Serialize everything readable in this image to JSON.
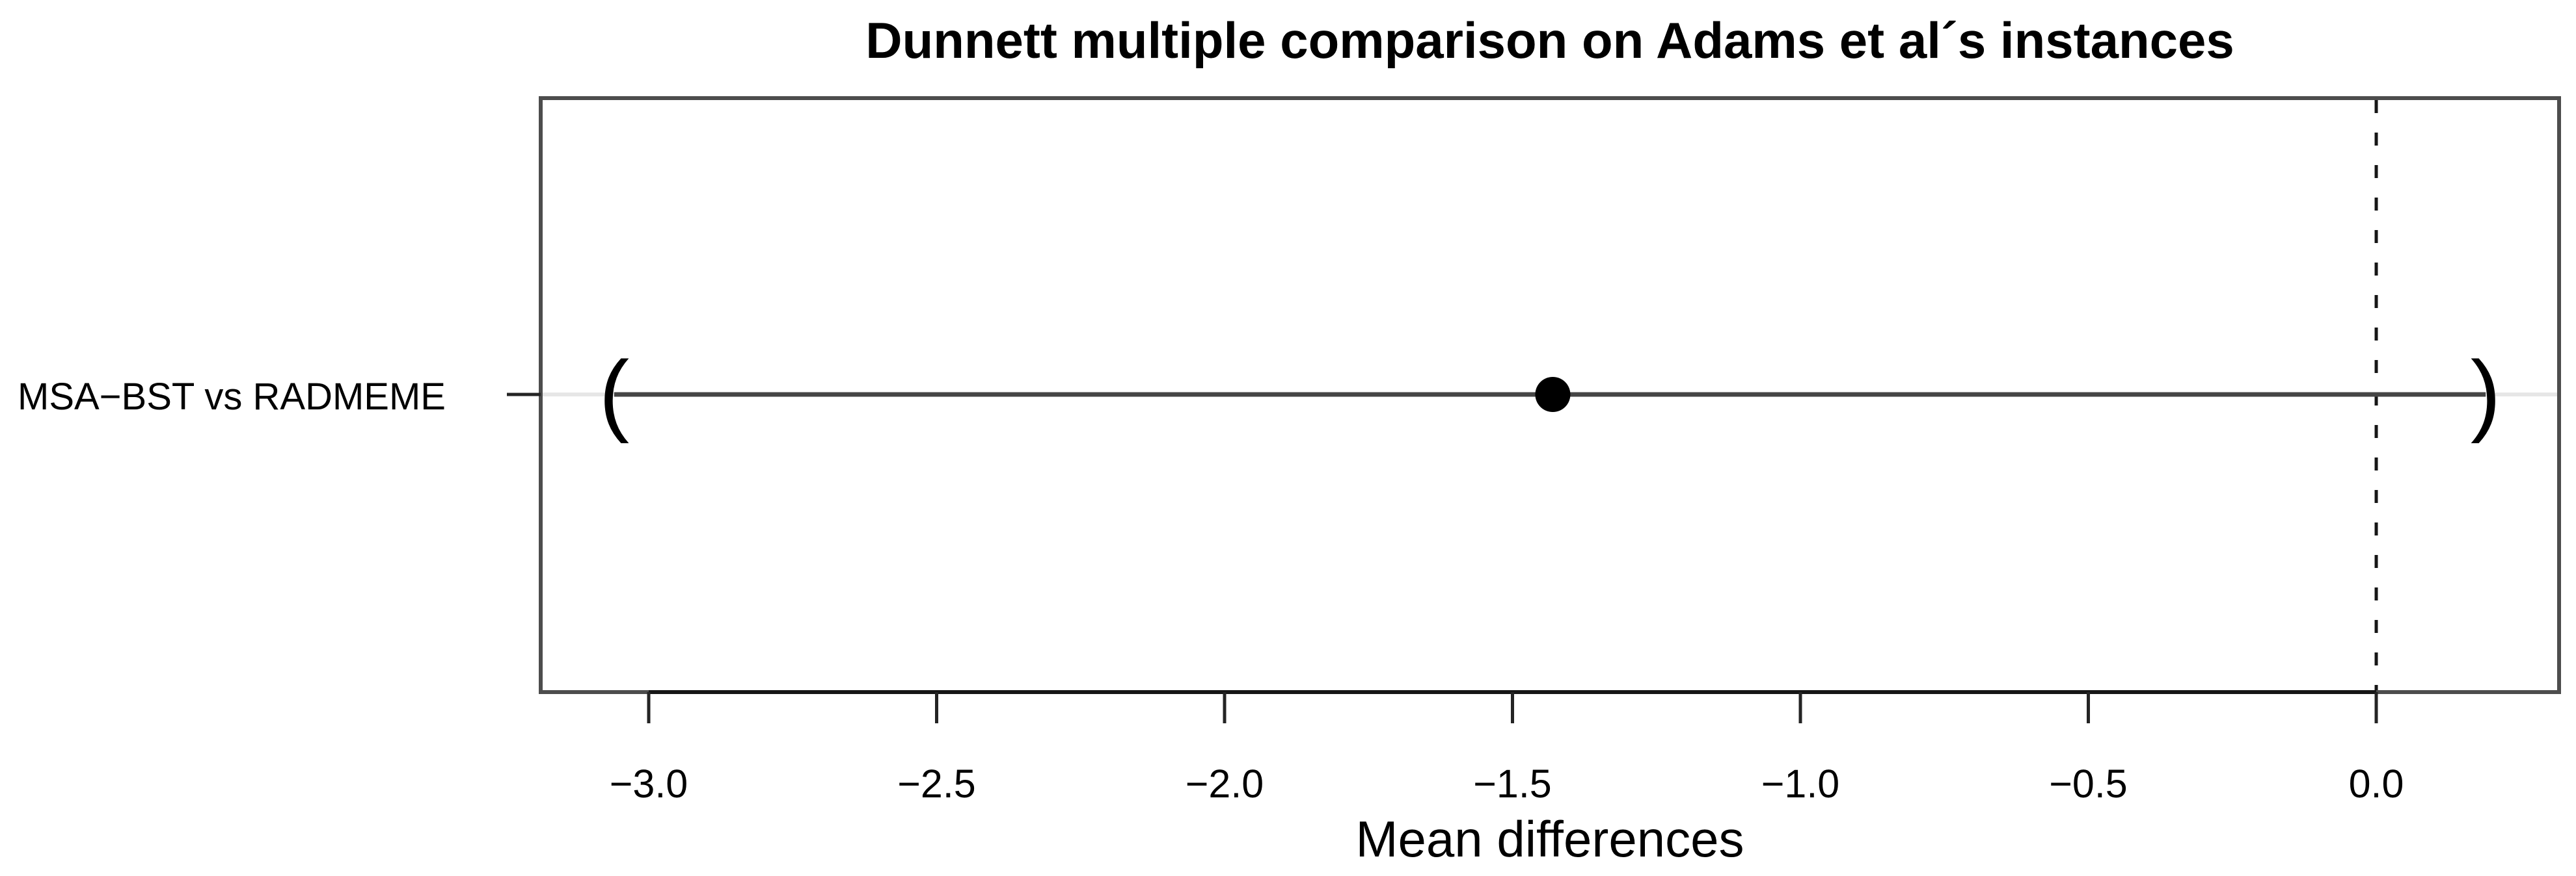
{
  "chart_data": {
    "type": "scatter",
    "subtype": "dunnett-confidence-interval-plot",
    "title": "Dunnett multiple comparison on Adams et al´s instances",
    "xlabel": "Mean differences",
    "ylabel": "",
    "rows": [
      "MSA−BST vs RADMEME"
    ],
    "points": [
      {
        "label": "MSA−BST vs RADMEME",
        "estimate": -1.43,
        "lower": -3.06,
        "upper": 0.19
      }
    ],
    "reference_line_x": 0.0,
    "reference_line_style": "dashed",
    "x_tick_values": [
      -3.0,
      -2.5,
      -2.0,
      -1.5,
      -1.0,
      -0.5,
      0.0
    ],
    "x_tick_labels": [
      "−3.0",
      "−2.5",
      "−2.0",
      "−1.5",
      "−1.0",
      "−0.5",
      "0.0"
    ],
    "xlim": [
      -3.19,
      0.32
    ],
    "grid": false,
    "legend": false,
    "interval_marker": "parentheses",
    "colors": {
      "interval_line": "#454545",
      "marker": "#000000",
      "box": "#4d4d4d",
      "axis": "#161616",
      "tick": "#242424",
      "row_guide": "#e6e6e6",
      "text": "#000000",
      "background": "#ffffff"
    }
  }
}
